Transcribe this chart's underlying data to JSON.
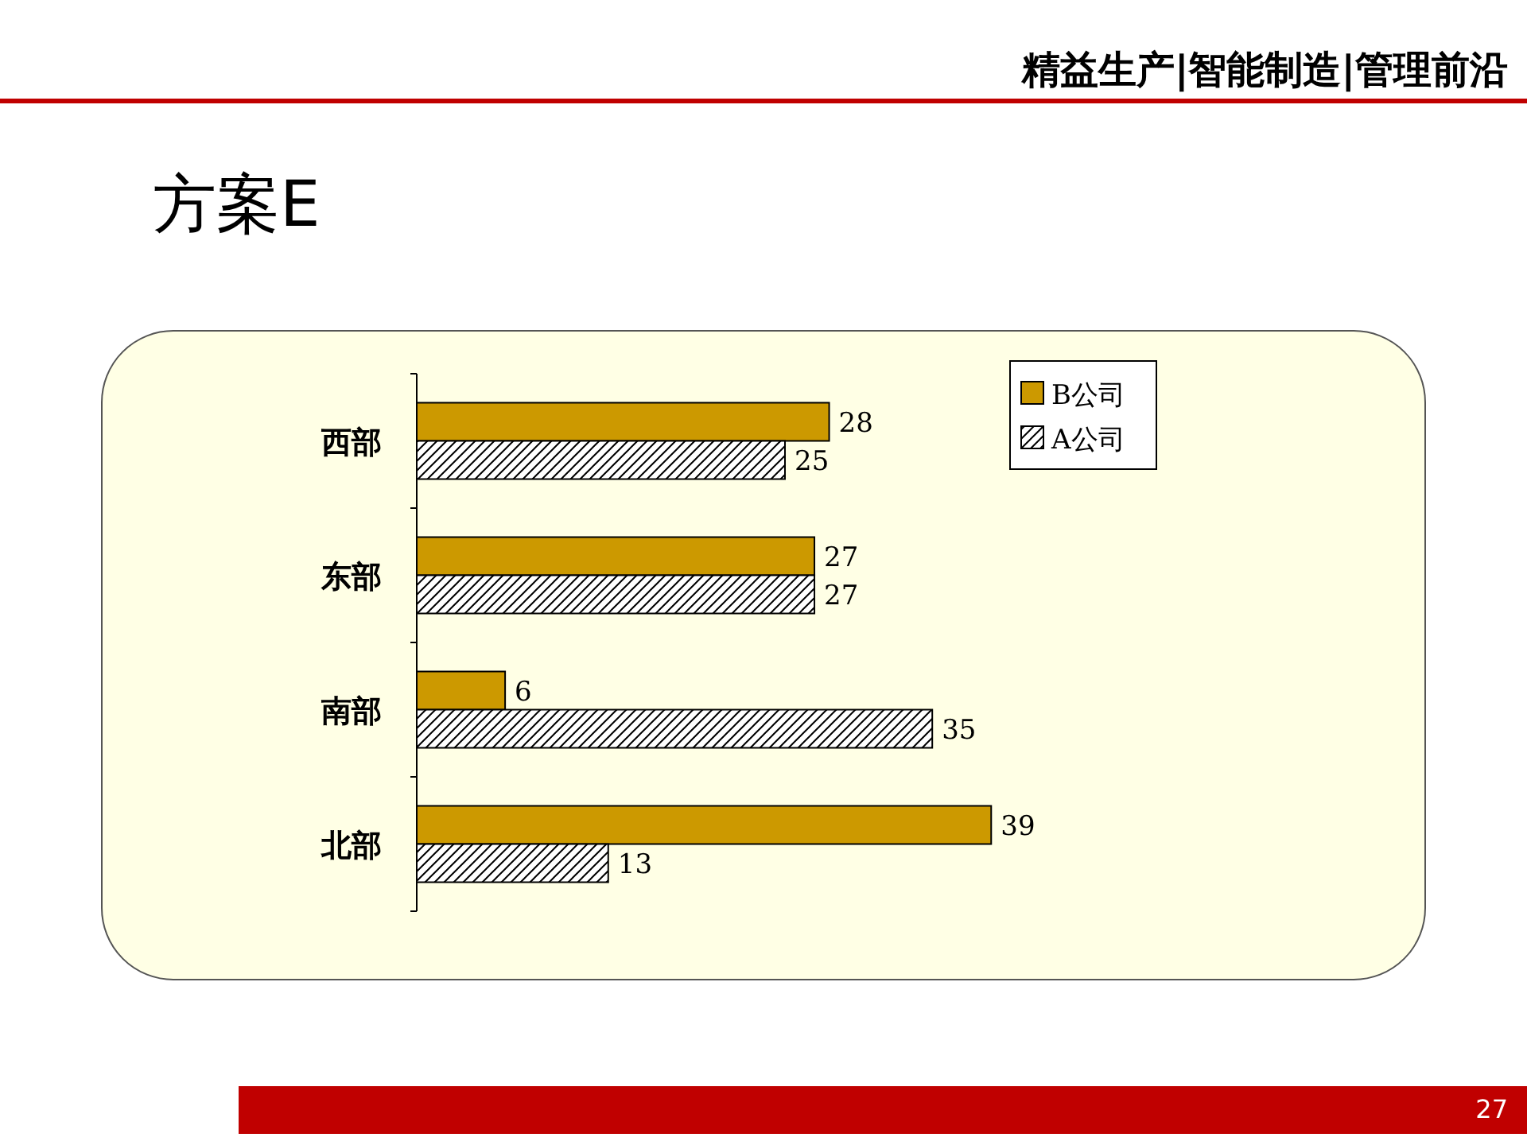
{
  "chart_data": {
    "type": "bar",
    "orientation": "horizontal",
    "title": "方案E",
    "categories": [
      "西部",
      "东部",
      "南部",
      "北部"
    ],
    "series": [
      {
        "name": "B公司",
        "color": "#cc9900",
        "values": [
          28,
          27,
          6,
          39
        ]
      },
      {
        "name": "A公司",
        "color": "#000000",
        "values": [
          25,
          27,
          35,
          13
        ]
      }
    ],
    "data_labels": true,
    "legend": "top right",
    "annotations": [
      "精益生产|智能制造|管理前沿",
      "27"
    ]
  }
}
